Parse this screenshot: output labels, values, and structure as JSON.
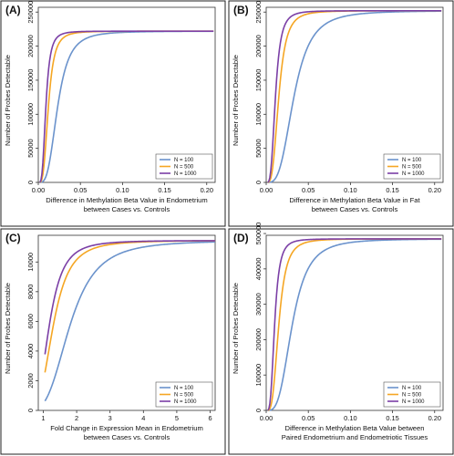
{
  "chart_data": [
    {
      "panel": "(A)",
      "type": "line",
      "xlabel": "Difference in Methylation Beta Value in Endometrium",
      "xlabel2": "between Cases vs. Controls",
      "ylabel": "Number of Probes Detectable",
      "xlim": [
        0,
        0.21
      ],
      "ylim": [
        0,
        257000
      ],
      "xticks": [
        0.0,
        0.05,
        0.1,
        0.15,
        0.2
      ],
      "xtick_labels": [
        "0.00",
        "0.05",
        "0.10",
        "0.15",
        "0.20"
      ],
      "yticks": [
        0,
        50000,
        100000,
        150000,
        200000,
        250000
      ],
      "ytick_labels": [
        "0",
        "50000",
        "100000",
        "150000",
        "200000",
        "250000"
      ],
      "x_min": 0.002,
      "y_max": 222000,
      "grid": false,
      "legend_position": "bottom-right",
      "series": [
        {
          "name": "N = 100",
          "color": "#6b93cc",
          "x_half": 0.023
        },
        {
          "name": "N = 500",
          "color": "#f5a623",
          "x_half": 0.012
        },
        {
          "name": "N = 1000",
          "color": "#7b3fa6",
          "x_half": 0.009
        }
      ]
    },
    {
      "panel": "(B)",
      "type": "line",
      "xlabel": "Difference in Methylation Beta Value in Fat",
      "xlabel2": "between Cases vs. Controls",
      "ylabel": "Number of Probes Detectable",
      "xlim": [
        0,
        0.21
      ],
      "ylim": [
        0,
        257000
      ],
      "xticks": [
        0.0,
        0.05,
        0.1,
        0.15,
        0.2
      ],
      "xtick_labels": [
        "0.00",
        "0.05",
        "0.10",
        "0.15",
        "0.20"
      ],
      "yticks": [
        0,
        50000,
        100000,
        150000,
        200000,
        250000
      ],
      "ytick_labels": [
        "0",
        "50000",
        "100000",
        "150000",
        "200000",
        "250000"
      ],
      "x_min": 0.002,
      "y_max": 252000,
      "grid": false,
      "legend_position": "bottom-right",
      "series": [
        {
          "name": "N = 100",
          "color": "#6b93cc",
          "x_half": 0.033
        },
        {
          "name": "N = 500",
          "color": "#f5a623",
          "x_half": 0.015
        },
        {
          "name": "N = 1000",
          "color": "#7b3fa6",
          "x_half": 0.011
        }
      ]
    },
    {
      "panel": "(C)",
      "type": "line",
      "xlabel": "Fold Change in Expression Mean in Endometrium",
      "xlabel2": "between Cases vs. Controls",
      "ylabel": "Number of Probes Detectable",
      "xlim": [
        0.85,
        6.15
      ],
      "ylim": [
        0,
        11800
      ],
      "xticks": [
        1,
        2,
        3,
        4,
        5,
        6
      ],
      "xtick_labels": [
        "1",
        "2",
        "3",
        "4",
        "5",
        "6"
      ],
      "yticks": [
        0,
        2000,
        4000,
        6000,
        8000,
        10000
      ],
      "ytick_labels": [
        "0",
        "2000",
        "4000",
        "6000",
        "8000",
        "10000"
      ],
      "x_min": 1.05,
      "y_max": 11450,
      "grid": false,
      "legend_position": "bottom-right",
      "series": [
        {
          "name": "N = 100",
          "color": "#6b93cc",
          "x_half": 1.8
        },
        {
          "name": "N = 500",
          "color": "#f5a623",
          "x_half": 1.3
        },
        {
          "name": "N = 1000",
          "color": "#7b3fa6",
          "x_half": 1.18
        }
      ]
    },
    {
      "panel": "(D)",
      "type": "line",
      "xlabel": "Difference in Methylation Beta Value between",
      "xlabel2": "Paired Endometrium and Endometriotic Tissues",
      "ylabel": "Number of Probes Detectable",
      "xlim": [
        0,
        0.21
      ],
      "ylim": [
        0,
        495000
      ],
      "xticks": [
        0.0,
        0.05,
        0.1,
        0.15,
        0.2
      ],
      "xtick_labels": [
        "0.00",
        "0.05",
        "0.10",
        "0.15",
        "0.20"
      ],
      "yticks": [
        0,
        100000,
        200000,
        300000,
        400000,
        500000
      ],
      "ytick_labels": [
        "0",
        "100000",
        "200000",
        "300000",
        "400000",
        "500000"
      ],
      "x_min": 0.002,
      "y_max": 485000,
      "grid": false,
      "legend_position": "bottom-right",
      "series": [
        {
          "name": "N = 100",
          "color": "#6b93cc",
          "x_half": 0.031
        },
        {
          "name": "N = 500",
          "color": "#f5a623",
          "x_half": 0.015
        },
        {
          "name": "N = 1000",
          "color": "#7b3fa6",
          "x_half": 0.01
        }
      ]
    }
  ]
}
